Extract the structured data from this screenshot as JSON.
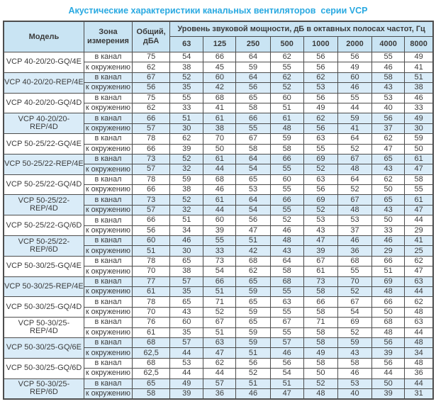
{
  "title": "Акустические характеристики канальных вентиляторов  серии VCP",
  "table": {
    "header": {
      "model": "Модель",
      "zone": "Зона измерения",
      "total": "Общий, дБА",
      "group": "Уровень звуковой мощности, дБ в октавных полосах частот, Гц",
      "frequencies": [
        "63",
        "125",
        "250",
        "500",
        "1000",
        "2000",
        "4000",
        "8000"
      ]
    },
    "zone_labels": {
      "duct": "в канал",
      "ambient": "к окружению"
    },
    "rows": [
      {
        "model": "VCP 40-20/20-GQ/4E",
        "shaded": false,
        "duct": {
          "total": "75",
          "bands": [
            "54",
            "66",
            "64",
            "62",
            "56",
            "56",
            "55",
            "49"
          ]
        },
        "ambient": {
          "total": "62",
          "bands": [
            "38",
            "45",
            "59",
            "55",
            "56",
            "49",
            "46",
            "41"
          ]
        }
      },
      {
        "model": "VCP 40-20/20-REP/4E",
        "shaded": true,
        "duct": {
          "total": "67",
          "bands": [
            "52",
            "60",
            "64",
            "62",
            "62",
            "60",
            "58",
            "51"
          ]
        },
        "ambient": {
          "total": "56",
          "bands": [
            "35",
            "42",
            "56",
            "52",
            "53",
            "46",
            "43",
            "38"
          ]
        }
      },
      {
        "model": "VCP 40-20/20-GQ/4D",
        "shaded": false,
        "duct": {
          "total": "75",
          "bands": [
            "55",
            "68",
            "65",
            "60",
            "56",
            "55",
            "53",
            "46"
          ]
        },
        "ambient": {
          "total": "62",
          "bands": [
            "33",
            "41",
            "58",
            "51",
            "49",
            "44",
            "40",
            "33"
          ]
        }
      },
      {
        "model": "VCP 40-20/20-REP/4D",
        "shaded": true,
        "duct": {
          "total": "66",
          "bands": [
            "51",
            "61",
            "66",
            "61",
            "62",
            "59",
            "56",
            "49"
          ]
        },
        "ambient": {
          "total": "57",
          "bands": [
            "30",
            "38",
            "55",
            "48",
            "56",
            "41",
            "37",
            "30"
          ]
        }
      },
      {
        "model": "VCP 50-25/22-GQ/4E",
        "shaded": false,
        "duct": {
          "total": "78",
          "bands": [
            "62",
            "70",
            "67",
            "59",
            "63",
            "64",
            "62",
            "59"
          ]
        },
        "ambient": {
          "total": "66",
          "bands": [
            "39",
            "50",
            "58",
            "58",
            "55",
            "52",
            "47",
            "50"
          ]
        }
      },
      {
        "model": "VCP 50-25/22-REP/4E",
        "shaded": true,
        "duct": {
          "total": "73",
          "bands": [
            "52",
            "61",
            "64",
            "66",
            "69",
            "67",
            "65",
            "61"
          ]
        },
        "ambient": {
          "total": "57",
          "bands": [
            "32",
            "44",
            "54",
            "55",
            "52",
            "48",
            "43",
            "47"
          ]
        }
      },
      {
        "model": "VCP 50-25/22-GQ/4D",
        "shaded": false,
        "duct": {
          "total": "78",
          "bands": [
            "59",
            "68",
            "65",
            "60",
            "63",
            "64",
            "62",
            "58"
          ]
        },
        "ambient": {
          "total": "66",
          "bands": [
            "38",
            "46",
            "53",
            "55",
            "56",
            "52",
            "50",
            "55"
          ]
        }
      },
      {
        "model": "VCP 50-25/22-REP/4D",
        "shaded": true,
        "duct": {
          "total": "73",
          "bands": [
            "52",
            "61",
            "64",
            "66",
            "69",
            "67",
            "65",
            "61"
          ]
        },
        "ambient": {
          "total": "57",
          "bands": [
            "32",
            "44",
            "54",
            "55",
            "52",
            "48",
            "43",
            "47"
          ]
        }
      },
      {
        "model": "VCP 50-25/22-GQ/6D",
        "shaded": false,
        "duct": {
          "total": "66",
          "bands": [
            "51",
            "60",
            "56",
            "52",
            "53",
            "53",
            "50",
            "44"
          ]
        },
        "ambient": {
          "total": "56",
          "bands": [
            "34",
            "39",
            "47",
            "46",
            "43",
            "37",
            "33",
            "29"
          ]
        }
      },
      {
        "model": "VCP 50-25/22-REP/6D",
        "shaded": true,
        "duct": {
          "total": "60",
          "bands": [
            "46",
            "55",
            "51",
            "48",
            "47",
            "46",
            "46",
            "41"
          ]
        },
        "ambient": {
          "total": "51",
          "bands": [
            "30",
            "33",
            "42",
            "43",
            "39",
            "36",
            "29",
            "25"
          ]
        }
      },
      {
        "model": "VCP 50-30/25-GQ/4E",
        "shaded": false,
        "duct": {
          "total": "78",
          "bands": [
            "65",
            "73",
            "68",
            "64",
            "67",
            "68",
            "66",
            "62"
          ]
        },
        "ambient": {
          "total": "70",
          "bands": [
            "38",
            "54",
            "62",
            "58",
            "61",
            "55",
            "51",
            "47"
          ]
        }
      },
      {
        "model": "VCP 50-30/25-REP/4E",
        "shaded": true,
        "duct": {
          "total": "77",
          "bands": [
            "57",
            "66",
            "65",
            "68",
            "73",
            "70",
            "69",
            "63"
          ]
        },
        "ambient": {
          "total": "61",
          "bands": [
            "35",
            "51",
            "59",
            "55",
            "58",
            "52",
            "48",
            "44"
          ]
        }
      },
      {
        "model": "VCP 50-30/25-GQ/4D",
        "shaded": false,
        "duct": {
          "total": "78",
          "bands": [
            "65",
            "71",
            "65",
            "63",
            "66",
            "67",
            "66",
            "62"
          ]
        },
        "ambient": {
          "total": "70",
          "bands": [
            "43",
            "52",
            "59",
            "55",
            "58",
            "54",
            "50",
            "48"
          ]
        }
      },
      {
        "model": "VCP 50-30/25-REP/4D",
        "shaded": false,
        "duct": {
          "total": "76",
          "bands": [
            "60",
            "67",
            "65",
            "67",
            "71",
            "69",
            "68",
            "63"
          ]
        },
        "ambient": {
          "total": "61",
          "bands": [
            "35",
            "51",
            "59",
            "55",
            "58",
            "52",
            "48",
            "44"
          ]
        }
      },
      {
        "model": "VCP 50-30/25-GQ/6E",
        "shaded": true,
        "duct": {
          "total": "68",
          "bands": [
            "57",
            "63",
            "59",
            "57",
            "58",
            "59",
            "56",
            "48"
          ]
        },
        "ambient": {
          "total": "62,5",
          "bands": [
            "44",
            "47",
            "51",
            "46",
            "49",
            "43",
            "39",
            "34"
          ]
        }
      },
      {
        "model": "VCP 50-30/25-GQ/6D",
        "shaded": false,
        "duct": {
          "total": "68",
          "bands": [
            "53",
            "62",
            "56",
            "56",
            "58",
            "58",
            "56",
            "48"
          ]
        },
        "ambient": {
          "total": "62,5",
          "bands": [
            "44",
            "44",
            "52",
            "54",
            "50",
            "46",
            "44",
            "36"
          ]
        }
      },
      {
        "model": "VCP 50-30/25-REP/6D",
        "shaded": true,
        "duct": {
          "total": "65",
          "bands": [
            "49",
            "57",
            "51",
            "51",
            "52",
            "53",
            "50",
            "44"
          ]
        },
        "ambient": {
          "total": "58",
          "bands": [
            "39",
            "36",
            "46",
            "47",
            "48",
            "40",
            "39",
            "31"
          ]
        }
      }
    ]
  },
  "colors": {
    "title": "#29a9e1",
    "header_bg": "#c9e4f3",
    "row_shaded_bg": "#daecf8",
    "row_plain_bg": "#ffffff",
    "border": "#4d4d4d",
    "text": "#3b3b3b"
  }
}
